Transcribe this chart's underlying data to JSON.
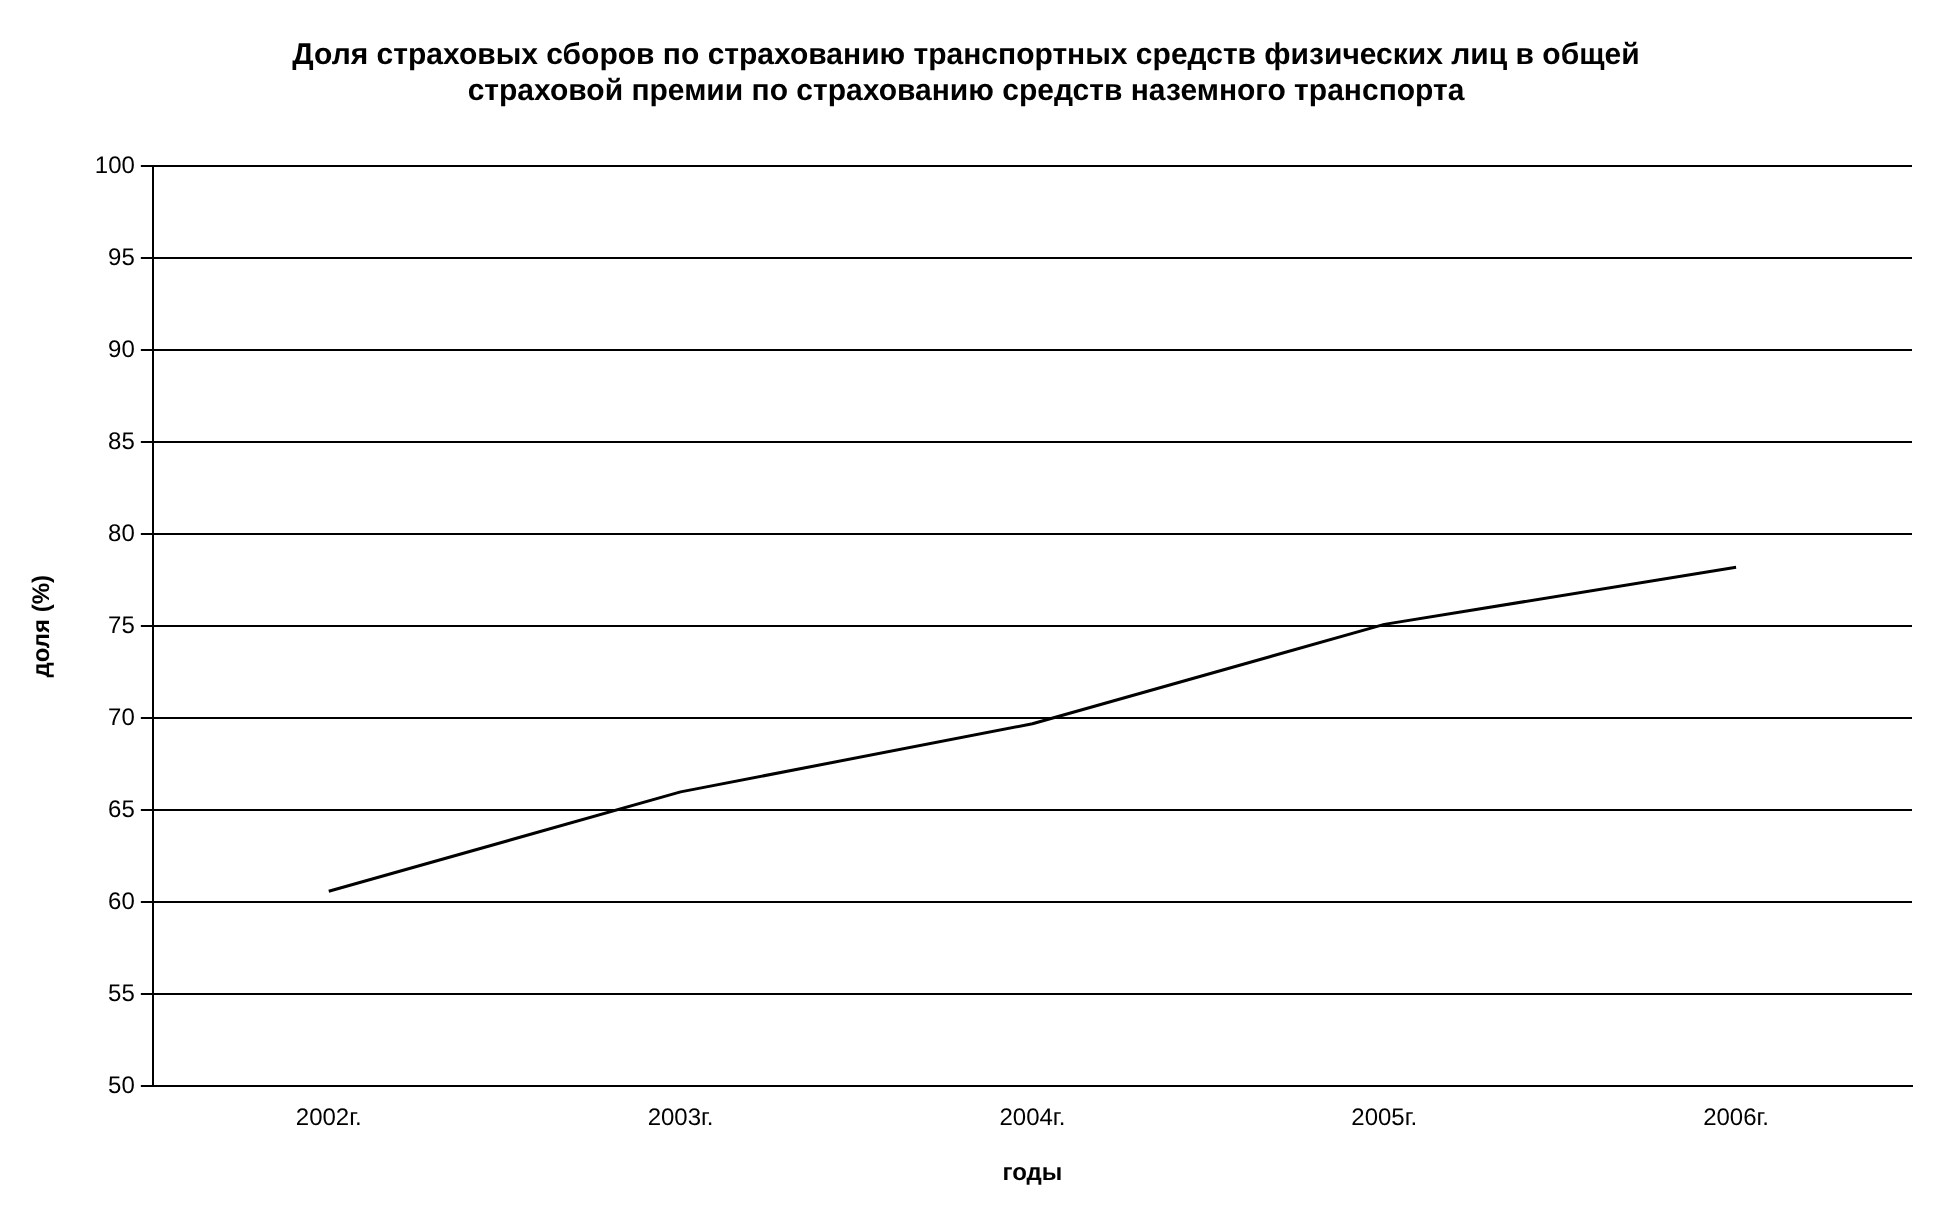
{
  "chart_data": {
    "type": "line",
    "title": [
      "Доля страховых сборов по страхованию транспортных средств физических лиц в общей",
      "страховой премии по страхованию средств наземного транспорта"
    ],
    "xlabel": "годы",
    "ylabel": "доля (%)",
    "categories": [
      "2002г.",
      "2003г.",
      "2004г.",
      "2005г.",
      "2006г."
    ],
    "series": [
      {
        "color": "#000000",
        "values": [
          60.6,
          66.0,
          69.7,
          75.1,
          78.2
        ]
      }
    ],
    "ylim": [
      50,
      100
    ],
    "yticks": [
      50,
      55,
      60,
      65,
      70,
      75,
      80,
      85,
      90,
      95,
      100
    ],
    "grid": "y",
    "legend": false,
    "marker": "none",
    "line_style": "solid"
  }
}
